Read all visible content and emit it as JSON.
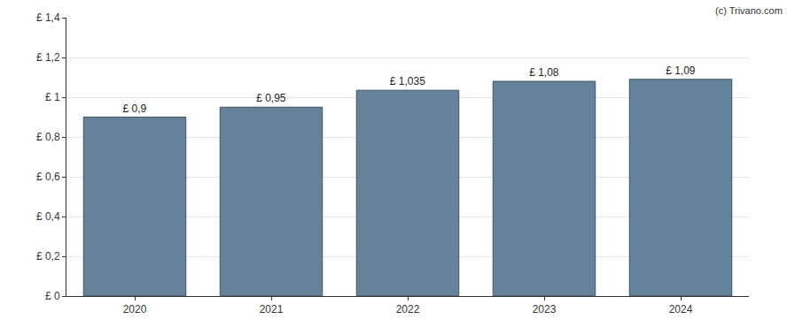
{
  "chart_data": {
    "type": "bar",
    "annotation": "(c) Trivano.com",
    "categories": [
      "2020",
      "2021",
      "2022",
      "2023",
      "2024"
    ],
    "values": [
      0.9,
      0.95,
      1.035,
      1.08,
      1.09
    ],
    "value_labels": [
      "£ 0,9",
      "£ 0,95",
      "£ 1,035",
      "£ 1,08",
      "£ 1,09"
    ],
    "data_labels": true,
    "color": "#66829a",
    "ylim": [
      0,
      1.4
    ],
    "yticks": [
      {
        "value": 0,
        "label": "£ 0"
      },
      {
        "value": 0.2,
        "label": "£ 0,2"
      },
      {
        "value": 0.4,
        "label": "£ 0,4"
      },
      {
        "value": 0.6,
        "label": "£ 0,6"
      },
      {
        "value": 0.8,
        "label": "£ 0,8"
      },
      {
        "value": 1,
        "label": "£ 1"
      },
      {
        "value": 1.2,
        "label": "£ 1,2"
      },
      {
        "value": 1.4,
        "label": "£ 1,4"
      }
    ],
    "grid": true
  }
}
